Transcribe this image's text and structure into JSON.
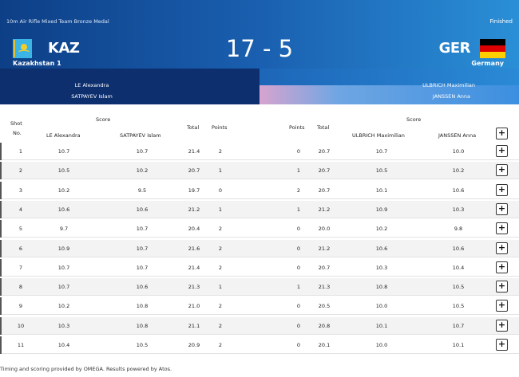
{
  "header": {
    "event": "10m Air Rifle Mixed Team Bronze Medal",
    "status": "Finished",
    "score": "17 - 5",
    "left": {
      "code": "KAZ",
      "name": "Kazakhstan 1",
      "athletes": [
        "LE Alexandra",
        "SATPAYEV Islam"
      ]
    },
    "right": {
      "code": "GER",
      "name": "Germany",
      "athletes": [
        "ULBRICH Maximilian",
        "JANSSEN Anna"
      ]
    }
  },
  "table": {
    "headers": {
      "shot_line1": "Shot",
      "shot_line2": "No.",
      "score": "Score",
      "left_a1": "LE Alexandra",
      "left_a2": "SATPAYEV Islam",
      "total": "Total",
      "points": "Points",
      "right_a1": "ULBRICH Maximilian",
      "right_a2": "JANSSEN Anna",
      "expand": "+"
    },
    "rows": [
      {
        "shot": "1",
        "s1": "10.7",
        "s2": "10.7",
        "tot1": "21.4",
        "pts1": "2",
        "pts2": "0",
        "tot2": "20.7",
        "s3": "10.7",
        "s4": "10.0",
        "expand": "+"
      },
      {
        "shot": "2",
        "s1": "10.5",
        "s2": "10.2",
        "tot1": "20.7",
        "pts1": "1",
        "pts2": "1",
        "tot2": "20.7",
        "s3": "10.5",
        "s4": "10.2",
        "expand": "+"
      },
      {
        "shot": "3",
        "s1": "10.2",
        "s2": "9.5",
        "tot1": "19.7",
        "pts1": "0",
        "pts2": "2",
        "tot2": "20.7",
        "s3": "10.1",
        "s4": "10.6",
        "expand": "+"
      },
      {
        "shot": "4",
        "s1": "10.6",
        "s2": "10.6",
        "tot1": "21.2",
        "pts1": "1",
        "pts2": "1",
        "tot2": "21.2",
        "s3": "10.9",
        "s4": "10.3",
        "expand": "+"
      },
      {
        "shot": "5",
        "s1": "9.7",
        "s2": "10.7",
        "tot1": "20.4",
        "pts1": "2",
        "pts2": "0",
        "tot2": "20.0",
        "s3": "10.2",
        "s4": "9.8",
        "expand": "+"
      },
      {
        "shot": "6",
        "s1": "10.9",
        "s2": "10.7",
        "tot1": "21.6",
        "pts1": "2",
        "pts2": "0",
        "tot2": "21.2",
        "s3": "10.6",
        "s4": "10.6",
        "expand": "+"
      },
      {
        "shot": "7",
        "s1": "10.7",
        "s2": "10.7",
        "tot1": "21.4",
        "pts1": "2",
        "pts2": "0",
        "tot2": "20.7",
        "s3": "10.3",
        "s4": "10.4",
        "expand": "+"
      },
      {
        "shot": "8",
        "s1": "10.7",
        "s2": "10.6",
        "tot1": "21.3",
        "pts1": "1",
        "pts2": "1",
        "tot2": "21.3",
        "s3": "10.8",
        "s4": "10.5",
        "expand": "+"
      },
      {
        "shot": "9",
        "s1": "10.2",
        "s2": "10.8",
        "tot1": "21.0",
        "pts1": "2",
        "pts2": "0",
        "tot2": "20.5",
        "s3": "10.0",
        "s4": "10.5",
        "expand": "+"
      },
      {
        "shot": "10",
        "s1": "10.3",
        "s2": "10.8",
        "tot1": "21.1",
        "pts1": "2",
        "pts2": "0",
        "tot2": "20.8",
        "s3": "10.1",
        "s4": "10.7",
        "expand": "+"
      },
      {
        "shot": "11",
        "s1": "10.4",
        "s2": "10.5",
        "tot1": "20.9",
        "pts1": "2",
        "pts2": "0",
        "tot2": "20.1",
        "s3": "10.0",
        "s4": "10.1",
        "expand": "+"
      }
    ]
  },
  "footer": {
    "text": "Timing and scoring provided by OMEGA. Results powered by Atos."
  },
  "colors": {
    "header_dark": "#0d2f6e",
    "header_mid": "#1a5fb0",
    "header_light": "#2a8fd6",
    "ger_gradient_start": "#d7a4cf"
  },
  "icons": {
    "left_flag": "kazakhstan-flag-icon",
    "right_flag": "germany-flag-icon",
    "expand": "plus-icon"
  }
}
